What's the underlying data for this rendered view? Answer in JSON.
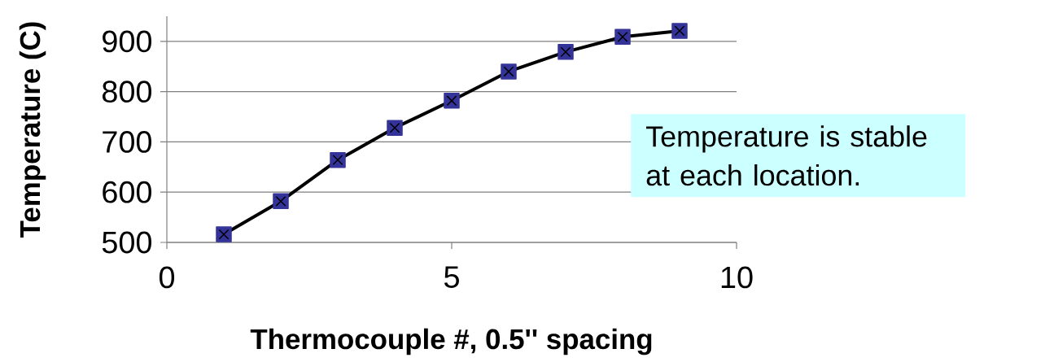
{
  "chart_data": {
    "type": "line",
    "xlabel": "Thermocouple #, 0.5'' spacing",
    "ylabel": "Temperature (C)",
    "x": [
      1,
      2,
      3,
      4,
      5,
      6,
      7,
      8,
      9
    ],
    "series": [
      {
        "type": "scatter",
        "color": "#333399",
        "marker": "square",
        "values": [
          516,
          582,
          664,
          728,
          782,
          840,
          879,
          909,
          921
        ]
      },
      {
        "color": "#000000",
        "marker": "cross",
        "values": [
          516,
          582,
          664,
          728,
          782,
          840,
          879,
          909,
          921
        ]
      }
    ],
    "xlim": [
      0,
      10
    ],
    "xticks": [
      0,
      5,
      10
    ],
    "ylim": [
      500,
      950
    ],
    "yticks": [
      500,
      600,
      700,
      800,
      900
    ],
    "grid": "y",
    "annotations": [
      "Temperature is stable at each location."
    ]
  }
}
